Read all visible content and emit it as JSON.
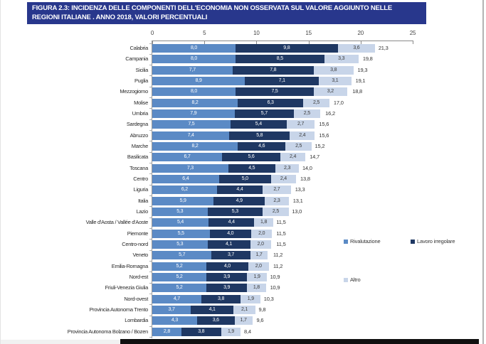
{
  "title": {
    "lines": [
      "FIGURA 2.3: INCIDENZA DELLE COMPONENTI DELL'ECONOMIA NON OSSERVATA SUL VALORE AGGIUNTO NELLE",
      "REGIONI ITALIANE .  ANNO 2018, VALORI PERCENTUALI"
    ],
    "bg_color": "#28378c",
    "text_color": "#ffffff"
  },
  "chart_data": {
    "type": "bar",
    "subtype": "horizontal-stacked",
    "title": "FIGURA 2.3: INCIDENZA DELLE COMPONENTI DELL'ECONOMIA NON OSSERVATA SUL VALORE AGGIUNTO NELLE REGIONI ITALIANE . ANNO 2018, VALORI PERCENTUALI",
    "value_format": "decimal-comma",
    "x_axis": {
      "position": "top",
      "min": 0,
      "max": 25,
      "ticks": [
        0,
        5,
        10,
        15,
        20,
        25
      ]
    },
    "legend_position": "right",
    "series": [
      {
        "name": "Rivalutazione",
        "color": "#5b8ac5",
        "label_color": "#ffffff"
      },
      {
        "name": "Lavoro irregolare",
        "color": "#1f3863",
        "label_color": "#ffffff"
      },
      {
        "name": "Altro",
        "color": "#c8d5e9",
        "label_color": "#3a3a3a"
      }
    ],
    "rows": [
      {
        "label": "Calabria",
        "values": [
          8.0,
          9.8,
          3.6
        ],
        "total": 21.3
      },
      {
        "label": "Campania",
        "values": [
          8.0,
          8.5,
          3.3
        ],
        "total": 19.8
      },
      {
        "label": "Sicilia",
        "values": [
          7.7,
          7.8,
          3.8
        ],
        "total": 19.3
      },
      {
        "label": "Puglia",
        "values": [
          8.9,
          7.1,
          3.1
        ],
        "total": 19.1
      },
      {
        "label": "Mezzogiorno",
        "values": [
          8.0,
          7.5,
          3.2
        ],
        "total": 18.8
      },
      {
        "label": "Molise",
        "values": [
          8.2,
          6.3,
          2.5
        ],
        "total": 17.0
      },
      {
        "label": "Umbria",
        "values": [
          7.9,
          5.7,
          2.5
        ],
        "total": 16.2
      },
      {
        "label": "Sardegna",
        "values": [
          7.5,
          5.4,
          2.7
        ],
        "total": 15.6
      },
      {
        "label": "Abruzzo",
        "values": [
          7.4,
          5.8,
          2.4
        ],
        "total": 15.6
      },
      {
        "label": "Marche",
        "values": [
          8.2,
          4.6,
          2.5
        ],
        "total": 15.2
      },
      {
        "label": "Basilicata",
        "values": [
          6.7,
          5.6,
          2.4
        ],
        "total": 14.7
      },
      {
        "label": "Toscana",
        "values": [
          7.3,
          4.5,
          2.3
        ],
        "total": 14.0
      },
      {
        "label": "Centro",
        "values": [
          6.4,
          5.0,
          2.4
        ],
        "total": 13.8
      },
      {
        "label": "Liguria",
        "values": [
          6.2,
          4.4,
          2.7
        ],
        "total": 13.3
      },
      {
        "label": "Italia",
        "values": [
          5.9,
          4.9,
          2.3
        ],
        "total": 13.1
      },
      {
        "label": "Lazio",
        "values": [
          5.3,
          5.3,
          2.5
        ],
        "total": 13.0
      },
      {
        "label": "Valle d'Aosta / Vallée d'Aoste",
        "values": [
          5.4,
          4.4,
          1.8
        ],
        "total": 11.5
      },
      {
        "label": "Piemonte",
        "values": [
          5.5,
          4.0,
          2.0
        ],
        "total": 11.5
      },
      {
        "label": "Centro-nord",
        "values": [
          5.3,
          4.1,
          2.0
        ],
        "total": 11.5
      },
      {
        "label": "Veneto",
        "values": [
          5.7,
          3.7,
          1.7
        ],
        "total": 11.2
      },
      {
        "label": "Emilia-Romagna",
        "values": [
          5.2,
          4.0,
          2.0
        ],
        "total": 11.2
      },
      {
        "label": "Nord-est",
        "values": [
          5.2,
          3.9,
          1.9
        ],
        "total": 10.9
      },
      {
        "label": "Friuli-Venezia Giulia",
        "values": [
          5.2,
          3.9,
          1.8
        ],
        "total": 10.9
      },
      {
        "label": "Nord-ovest",
        "values": [
          4.7,
          3.8,
          1.9
        ],
        "total": 10.3
      },
      {
        "label": "Provincia Autonoma Trento",
        "values": [
          3.7,
          4.1,
          2.1
        ],
        "total": 9.8
      },
      {
        "label": "Lombardia",
        "values": [
          4.3,
          3.6,
          1.7
        ],
        "total": 9.6
      },
      {
        "label": "Provincia Autonoma Bolzano / Bozen",
        "values": [
          2.8,
          3.8,
          1.9
        ],
        "total": 8.4
      }
    ]
  },
  "legend": {
    "items": [
      {
        "label": "Rivalutazione",
        "color": "#5b8ac5"
      },
      {
        "label": "Lavoro irregolare",
        "color": "#1f3863"
      },
      {
        "label": "Altro",
        "color": "#c8d5e9"
      }
    ]
  }
}
